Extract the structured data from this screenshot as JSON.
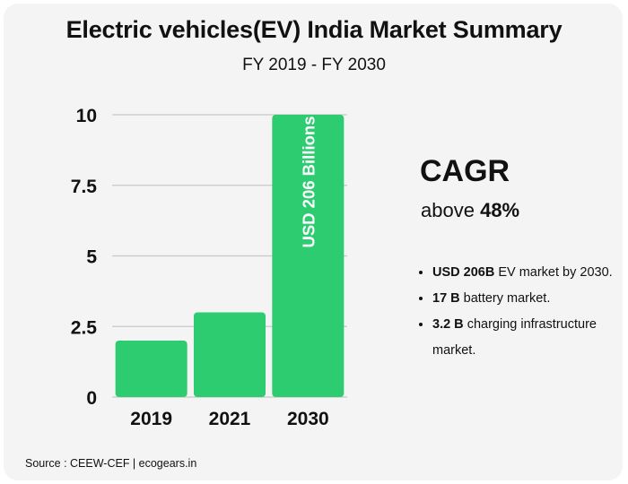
{
  "header": {
    "title": "Electric vehicles(EV) India Market Summary",
    "subtitle": "FY 2019 - FY 2030"
  },
  "chart_data": {
    "type": "bar",
    "categories": [
      "2019",
      "2021",
      "2030"
    ],
    "values": [
      2,
      3,
      10
    ],
    "ylim": [
      0,
      10
    ],
    "yticks": [
      "0",
      "2.5",
      "5",
      "7.5",
      "10"
    ],
    "ytick_values": [
      0,
      2.5,
      5,
      7.5,
      10
    ],
    "bar_color": "#2ecc71",
    "grid": true,
    "annotation": {
      "category": "2030",
      "text": "USD 206 Billions"
    }
  },
  "cagr": {
    "title": "CAGR",
    "prefix": "above",
    "value": "48%"
  },
  "bullets": [
    {
      "bold": "USD 206B",
      "text": " EV market by 2030."
    },
    {
      "bold": "17 B",
      "text": " battery market."
    },
    {
      "bold": "3.2 B",
      "text": " charging infrastructure market."
    }
  ],
  "footer": {
    "source": "Source : CEEW-CEF | ecogears.in"
  }
}
